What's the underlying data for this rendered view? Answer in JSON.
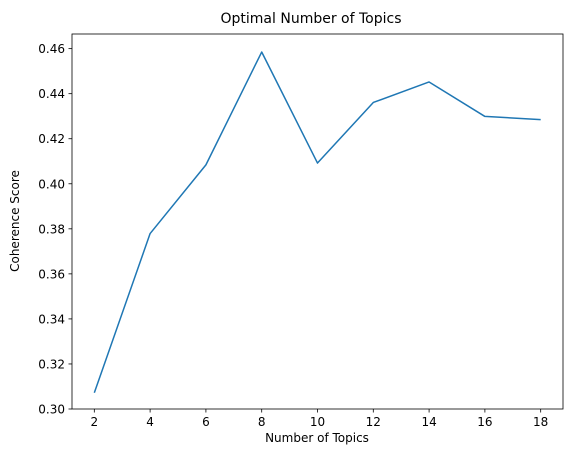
{
  "chart_data": {
    "type": "line",
    "title": "Optimal Number of Topics",
    "xlabel": "Number of Topics",
    "ylabel": "Coherence Score",
    "x": [
      2,
      4,
      6,
      8,
      10,
      12,
      14,
      16,
      18
    ],
    "series": [
      {
        "values": [
          0.3072,
          0.3779,
          0.4084,
          0.4585,
          0.4092,
          0.4361,
          0.4452,
          0.4299,
          0.4285
        ],
        "color": "#1f77b4"
      }
    ],
    "xticks": [
      2,
      4,
      6,
      8,
      10,
      12,
      14,
      16,
      18
    ],
    "xtick_labels": [
      "2",
      "4",
      "6",
      "8",
      "10",
      "12",
      "14",
      "16",
      "18"
    ],
    "yticks": [
      0.3,
      0.32,
      0.34,
      0.36,
      0.38,
      0.4,
      0.42,
      0.44,
      0.46
    ],
    "ytick_labels": [
      "0.30",
      "0.32",
      "0.34",
      "0.36",
      "0.38",
      "0.40",
      "0.42",
      "0.44",
      "0.46"
    ],
    "xlim": [
      1.2,
      18.8
    ],
    "ylim": [
      0.3,
      0.4665
    ],
    "grid": false,
    "legend": "none"
  }
}
